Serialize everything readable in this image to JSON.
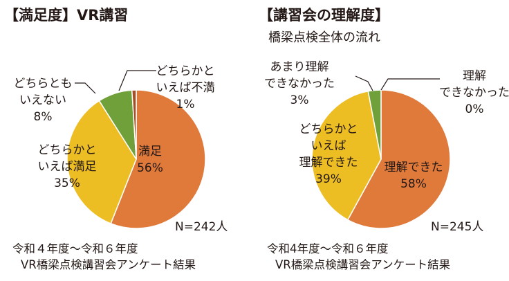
{
  "colors": {
    "orange": "#DF7A3B",
    "yellow": "#EDBD24",
    "green": "#6FA03A",
    "brown": "#A3502A",
    "leader": "#231815"
  },
  "charts": [
    {
      "title": "【満足度】VR講習",
      "n_label": "N=242人",
      "source_line1": "令和４年度～令和６年度",
      "source_line2": "VR橋梁点検講習会アンケート結果"
    },
    {
      "title": "【講習会の理解度】",
      "subtitle": "橋梁点検全体の流れ",
      "n_label": "N=245人",
      "source_line1": "令和4年度～令和６年度",
      "source_line2": "VR橋梁点検講習会アンケート結果"
    }
  ],
  "chart_data": [
    {
      "type": "pie",
      "title": "【満足度】VR講習",
      "total_label": "N=242人",
      "slices": [
        {
          "label": "満足",
          "value": 56,
          "value_label": "56%",
          "color": "#DF7A3B"
        },
        {
          "label": "どちらかといえば満足",
          "value": 35,
          "value_label": "35%",
          "color": "#EDBD24"
        },
        {
          "label": "どちらともいえない",
          "value": 8,
          "value_label": "8%",
          "color": "#6FA03A"
        },
        {
          "label": "どちらかといえば不満",
          "value": 1,
          "value_label": "1%",
          "color": "#A3502A"
        }
      ]
    },
    {
      "type": "pie",
      "title": "【講習会の理解度】",
      "subtitle": "橋梁点検全体の流れ",
      "total_label": "N=245人",
      "slices": [
        {
          "label": "理解できた",
          "value": 58,
          "value_label": "58%",
          "color": "#DF7A3B"
        },
        {
          "label": "どちらかといえば理解できた",
          "value": 39,
          "value_label": "39%",
          "color": "#EDBD24"
        },
        {
          "label": "あまり理解できなかった",
          "value": 3,
          "value_label": "3%",
          "color": "#6FA03A"
        },
        {
          "label": "理解できなかった",
          "value": 0,
          "value_label": "0%",
          "color": "#A3502A"
        }
      ]
    }
  ],
  "slice_text": {
    "left": [
      [
        "満足",
        "56%"
      ],
      [
        "どちらかと",
        "いえば満足",
        "35%"
      ],
      [
        "どちらとも",
        "いえない",
        "8%"
      ],
      [
        "どちらかと",
        "いえば不満",
        "1%"
      ]
    ],
    "right": [
      [
        "理解できた",
        "58%"
      ],
      [
        "どちらかと",
        "いえば",
        "理解できた",
        "39%"
      ],
      [
        "あまり理解",
        "できなかった",
        "3%"
      ],
      [
        "理解",
        "できなかった",
        "0%"
      ]
    ]
  }
}
